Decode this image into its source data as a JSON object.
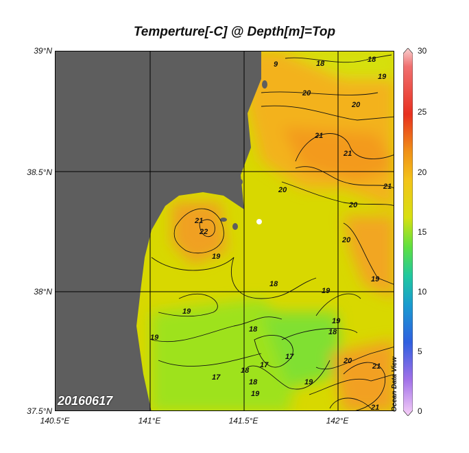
{
  "map": {
    "title": "Temperture[-C] @ Depth[m]=Top",
    "date_label": "20160617",
    "vendor_label": "Ocean Data View",
    "lat_ticks": [
      "39°N",
      "38.5°N",
      "38°N",
      "37.5°N"
    ],
    "lon_ticks": [
      "140.5°E",
      "141°E",
      "141.5°E",
      "142°E"
    ],
    "colorbar_ticks": [
      "30",
      "25",
      "20",
      "15",
      "10",
      "5",
      "0"
    ],
    "contour_labels": [
      "9",
      "18",
      "18",
      "19",
      "20",
      "20",
      "21",
      "21",
      "21",
      "20",
      "21",
      "22",
      "19",
      "20",
      "20",
      "18",
      "19",
      "19",
      "19",
      "19",
      "18",
      "17",
      "18",
      "18",
      "17",
      "19",
      "19",
      "18",
      "17",
      "19",
      "20",
      "21",
      "21"
    ],
    "colors": {
      "land": "#5e5e5e",
      "warm": "#f5a623",
      "mid": "#f0d000",
      "cool": "#a9e21a",
      "cold": "#6ee33a",
      "grid": "#000000"
    }
  }
}
